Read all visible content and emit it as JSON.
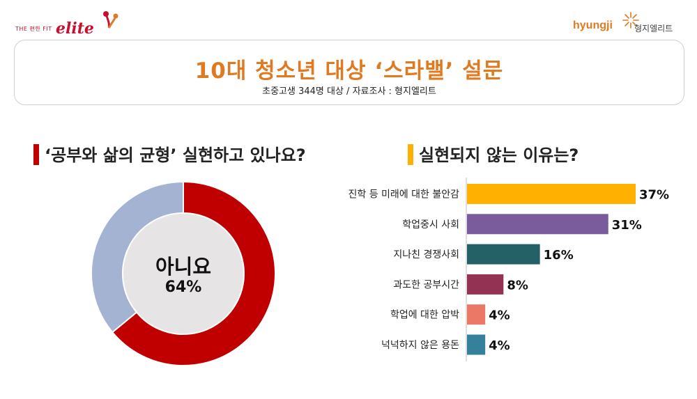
{
  "logos": {
    "left_small": "THE 편한 FIT",
    "left_brand": "elite",
    "right_brand": "hyungji",
    "right_korean": "형지엘리트"
  },
  "header": {
    "title": "10대 청소년 대상 ‘스라밸’ 설문",
    "subtitle": "초중고생 344명 대상 / 자료조사 : 형지엘리트"
  },
  "left_section": {
    "heading": "‘공부와 삶의 균형’ 실현하고 있나요?"
  },
  "right_section": {
    "heading": "실현되지 않는 이유는?"
  },
  "colors": {
    "accent_orange": "#e07a20",
    "donut_no": "#c00000",
    "donut_yes": "#a3b3d1",
    "donut_center": "#e6e4e4"
  },
  "chart_data": [
    {
      "type": "pie",
      "subtype": "donut",
      "center_label": "아니요",
      "center_value": "64%",
      "slices": [
        {
          "value": 64,
          "color": "#c00000"
        },
        {
          "value": 36,
          "color": "#a3b3d1"
        }
      ]
    },
    {
      "type": "bar",
      "orientation": "horizontal",
      "categories": [
        "진학 등 미래에 대한 불안감",
        "학업중시 사회",
        "지나친 경쟁사회",
        "과도한 공부시간",
        "학업에 대한 압박",
        "넉넉하지 않은 용돈"
      ],
      "values": [
        37,
        31,
        16,
        8,
        4,
        4
      ],
      "value_labels": [
        "37%",
        "31%",
        "16%",
        "8%",
        "4%",
        "4%"
      ],
      "colors": [
        "#ffb000",
        "#7a5c9c",
        "#246167",
        "#943253",
        "#eb7767",
        "#35809b"
      ]
    }
  ]
}
